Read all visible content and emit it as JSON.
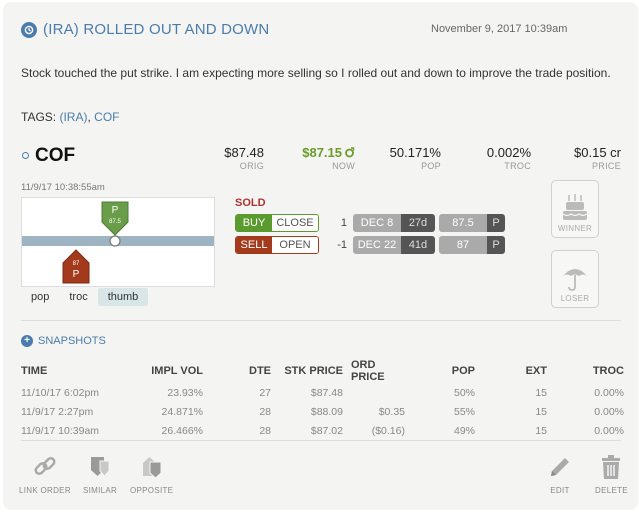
{
  "header": {
    "title": "(IRA) ROLLED OUT AND DOWN",
    "date": "November 9, 2017 10:39am",
    "description": "Stock touched the put strike. I am expecting more selling so I rolled out and down to improve the trade position.",
    "tags_label": "TAGS:",
    "tags": [
      "(IRA)",
      "COF"
    ],
    "tag_separator": ","
  },
  "position": {
    "symbol": "COF",
    "stats": [
      {
        "value": "$87.48",
        "label": "ORIG"
      },
      {
        "value": "$87.15",
        "label": "NOW"
      },
      {
        "value": "50.171%",
        "label": "POP"
      },
      {
        "value": "0.002%",
        "label": "TROC"
      },
      {
        "value": "$0.15 cr",
        "label": "PRICE"
      }
    ],
    "timestamp": "11/9/17 10:38:55am",
    "chart_markers": [
      {
        "letter": "P",
        "value": "87.5"
      },
      {
        "letter": "P",
        "value": "87"
      }
    ],
    "tabs": [
      "pop",
      "troc",
      "thumb"
    ],
    "active_tab": "thumb",
    "trade_status": "SOLD",
    "legs": [
      {
        "action": "BUY",
        "effect": "CLOSE",
        "qty": "1",
        "exp": "DEC 8",
        "dte": "27d",
        "strike": "87.5",
        "type": "P"
      },
      {
        "action": "SELL",
        "effect": "OPEN",
        "qty": "-1",
        "exp": "DEC 22",
        "dte": "41d",
        "strike": "87",
        "type": "P"
      }
    ],
    "winner_label": "WINNER",
    "loser_label": "LOSER",
    "colors": {
      "up": "#6a9d2a",
      "buy": "#5a9a2e",
      "sell": "#a43a1c",
      "accent": "#4c7cab"
    }
  },
  "snapshots": {
    "label": "SNAPSHOTS",
    "columns": [
      "TIME",
      "IMPL VOL",
      "DTE",
      "STK PRICE",
      "ORD PRICE",
      "POP",
      "EXT",
      "TROC"
    ],
    "rows": [
      [
        "11/10/17 6:02pm",
        "23.93%",
        "27",
        "$87.48",
        "",
        "50%",
        "15",
        "0.00%"
      ],
      [
        "11/9/17 2:27pm",
        "24.871%",
        "28",
        "$88.09",
        "$0.35",
        "55%",
        "15",
        "0.00%"
      ],
      [
        "11/9/17 10:39am",
        "26.466%",
        "28",
        "$87.02",
        "($0.16)",
        "49%",
        "15",
        "0.00%"
      ]
    ]
  },
  "footer": {
    "link_order": "LINK ORDER",
    "similar": "SIMILAR",
    "opposite": "OPPOSITE",
    "edit": "EDIT",
    "delete": "DELETE"
  }
}
